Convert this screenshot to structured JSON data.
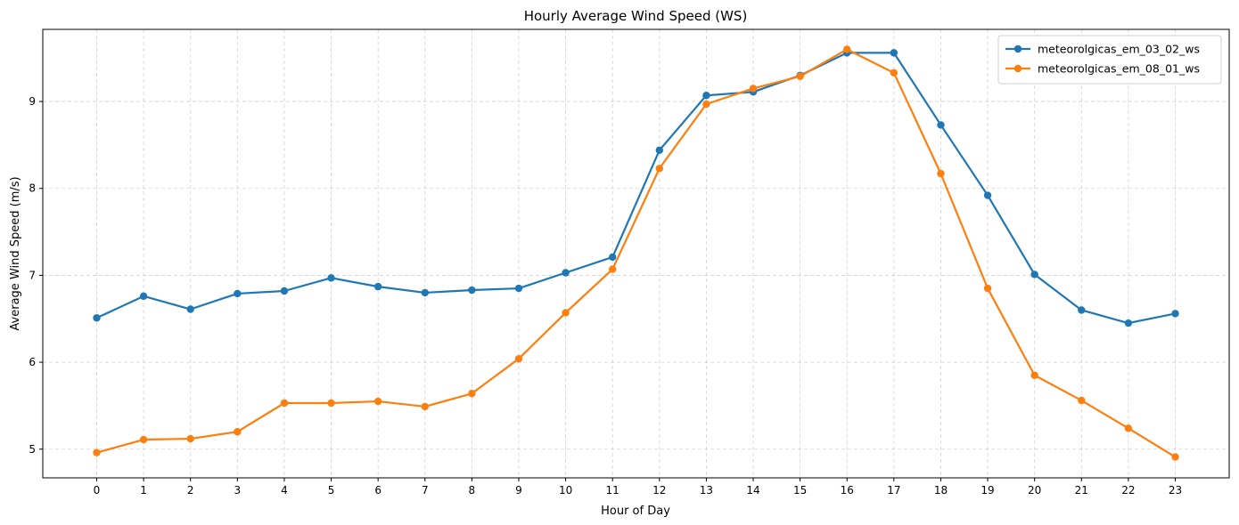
{
  "chart_data": {
    "type": "line",
    "title": "Hourly Average Wind Speed (WS)",
    "xlabel": "Hour of Day",
    "ylabel": "Average Wind Speed (m/s)",
    "x": [
      0,
      1,
      2,
      3,
      4,
      5,
      6,
      7,
      8,
      9,
      10,
      11,
      12,
      13,
      14,
      15,
      16,
      17,
      18,
      19,
      20,
      21,
      22,
      23
    ],
    "xlim": [
      -1.15,
      24.15
    ],
    "ylim": [
      4.67,
      9.83
    ],
    "yticks": [
      5,
      6,
      7,
      8,
      9
    ],
    "grid": true,
    "legend_position": "top-right",
    "series": [
      {
        "name": "meteorolgicas_em_03_02_ws",
        "color": "#1f77b4",
        "values": [
          6.51,
          6.76,
          6.61,
          6.79,
          6.82,
          6.97,
          6.87,
          6.8,
          6.83,
          6.85,
          7.03,
          7.21,
          8.44,
          9.07,
          9.11,
          9.3,
          9.56,
          9.56,
          8.73,
          7.92,
          7.01,
          6.6,
          6.45,
          6.56
        ]
      },
      {
        "name": "meteorolgicas_em_08_01_ws",
        "color": "#ff7f0e",
        "values": [
          4.96,
          5.11,
          5.12,
          5.2,
          5.53,
          5.53,
          5.55,
          5.49,
          5.64,
          6.04,
          6.57,
          7.07,
          8.23,
          8.97,
          9.15,
          9.29,
          9.6,
          9.33,
          8.17,
          6.85,
          5.85,
          5.56,
          5.24,
          4.91
        ]
      }
    ]
  }
}
